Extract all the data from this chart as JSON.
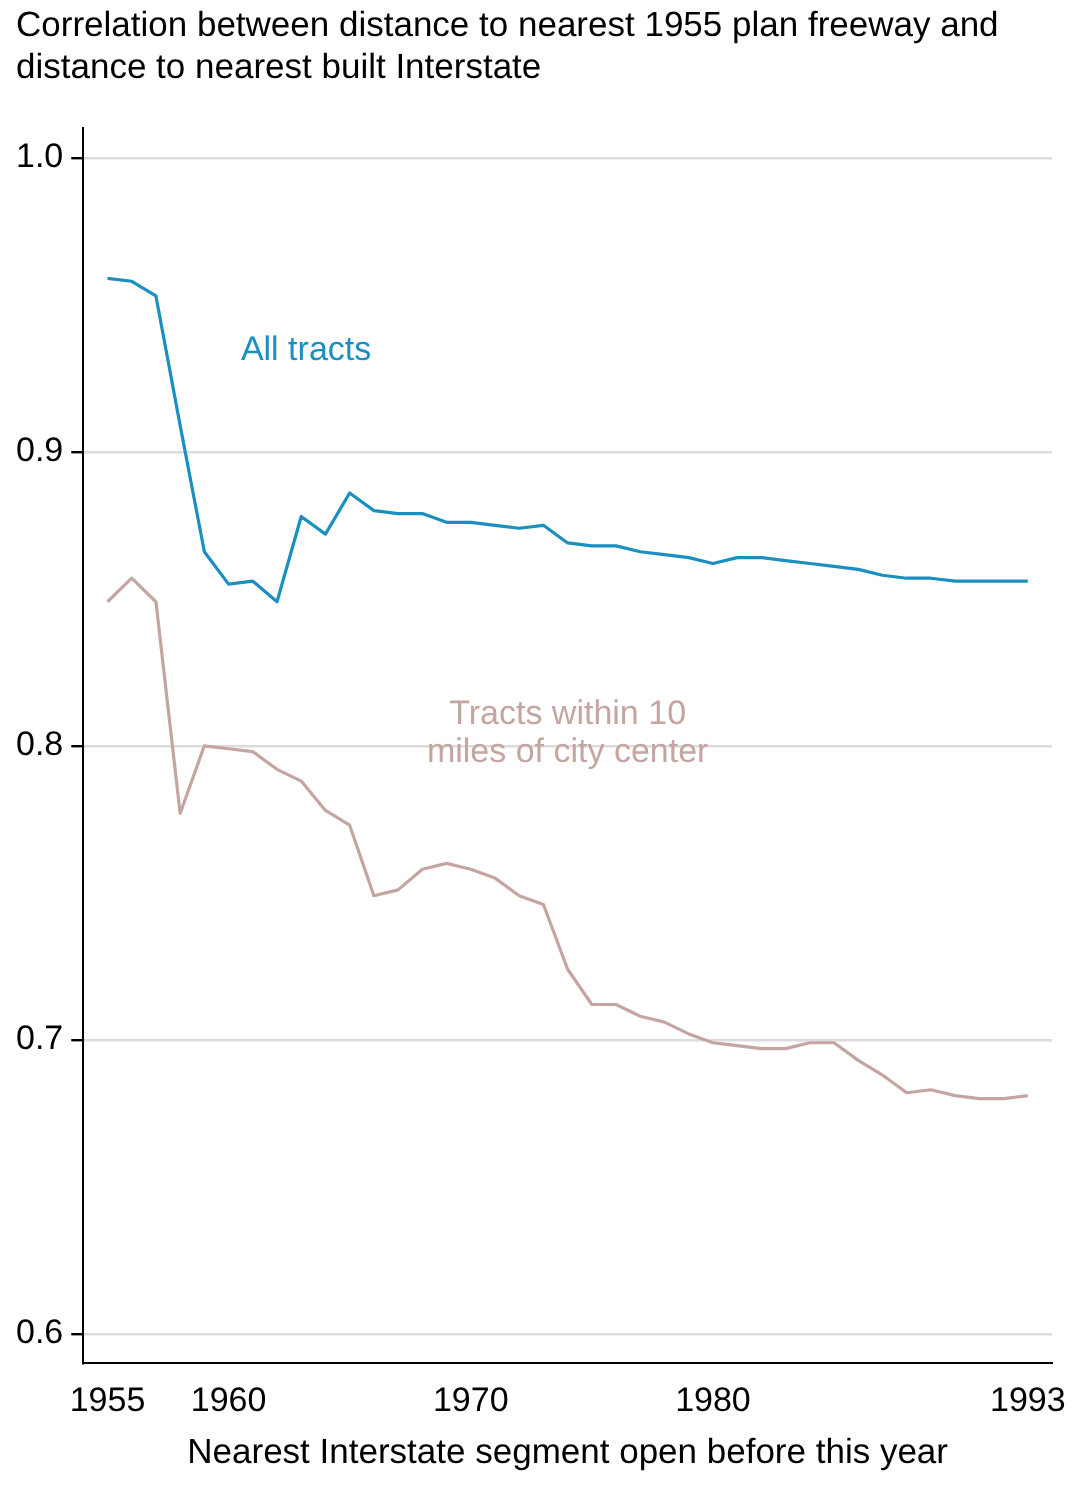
{
  "chart_data": {
    "type": "line",
    "title": "Correlation between distance to nearest 1955 plan freeway and distance to nearest built Interstate",
    "xlabel": "Nearest Interstate segment open before this year",
    "x": [
      1955,
      1956,
      1957,
      1958,
      1959,
      1960,
      1961,
      1962,
      1963,
      1964,
      1965,
      1966,
      1967,
      1968,
      1969,
      1970,
      1971,
      1972,
      1973,
      1974,
      1975,
      1976,
      1977,
      1978,
      1979,
      1980,
      1981,
      1982,
      1983,
      1984,
      1985,
      1986,
      1987,
      1988,
      1989,
      1990,
      1991,
      1992,
      1993
    ],
    "series": [
      {
        "name": "All tracts",
        "color": "#1a8fc0",
        "values": [
          0.959,
          0.958,
          0.953,
          0.909,
          0.866,
          0.855,
          0.856,
          0.849,
          0.878,
          0.872,
          0.886,
          0.88,
          0.879,
          0.879,
          0.876,
          0.876,
          0.875,
          0.874,
          0.875,
          0.869,
          0.868,
          0.868,
          0.866,
          0.865,
          0.864,
          0.862,
          0.864,
          0.864,
          0.863,
          0.862,
          0.861,
          0.86,
          0.858,
          0.857,
          0.857,
          0.856,
          0.856,
          0.856,
          0.856
        ]
      },
      {
        "name": "Tracts within 10 miles of city center",
        "color": "#c4a59f",
        "values": [
          0.849,
          0.857,
          0.849,
          0.777,
          0.8,
          0.799,
          0.798,
          0.792,
          0.788,
          0.778,
          0.773,
          0.749,
          0.751,
          0.758,
          0.76,
          0.758,
          0.755,
          0.749,
          0.746,
          0.724,
          0.712,
          0.712,
          0.708,
          0.706,
          0.702,
          0.699,
          0.698,
          0.697,
          0.697,
          0.699,
          0.699,
          0.693,
          0.688,
          0.682,
          0.683,
          0.681,
          0.68,
          0.68,
          0.681
        ]
      }
    ],
    "xlim": [
      1954,
      1994
    ],
    "xticks": [
      1955,
      1960,
      1970,
      1980,
      1993
    ],
    "ylim": [
      0.59,
      1.01
    ],
    "yticks": [
      {
        "value": 0.6,
        "label": "0.6"
      },
      {
        "value": 0.7,
        "label": "0.7"
      },
      {
        "value": 0.8,
        "label": "0.8"
      },
      {
        "value": 0.9,
        "label": "0.9"
      },
      {
        "value": 1.0,
        "label": "1.0"
      }
    ],
    "grid": "y",
    "marker": "none",
    "line_style": "solid"
  }
}
